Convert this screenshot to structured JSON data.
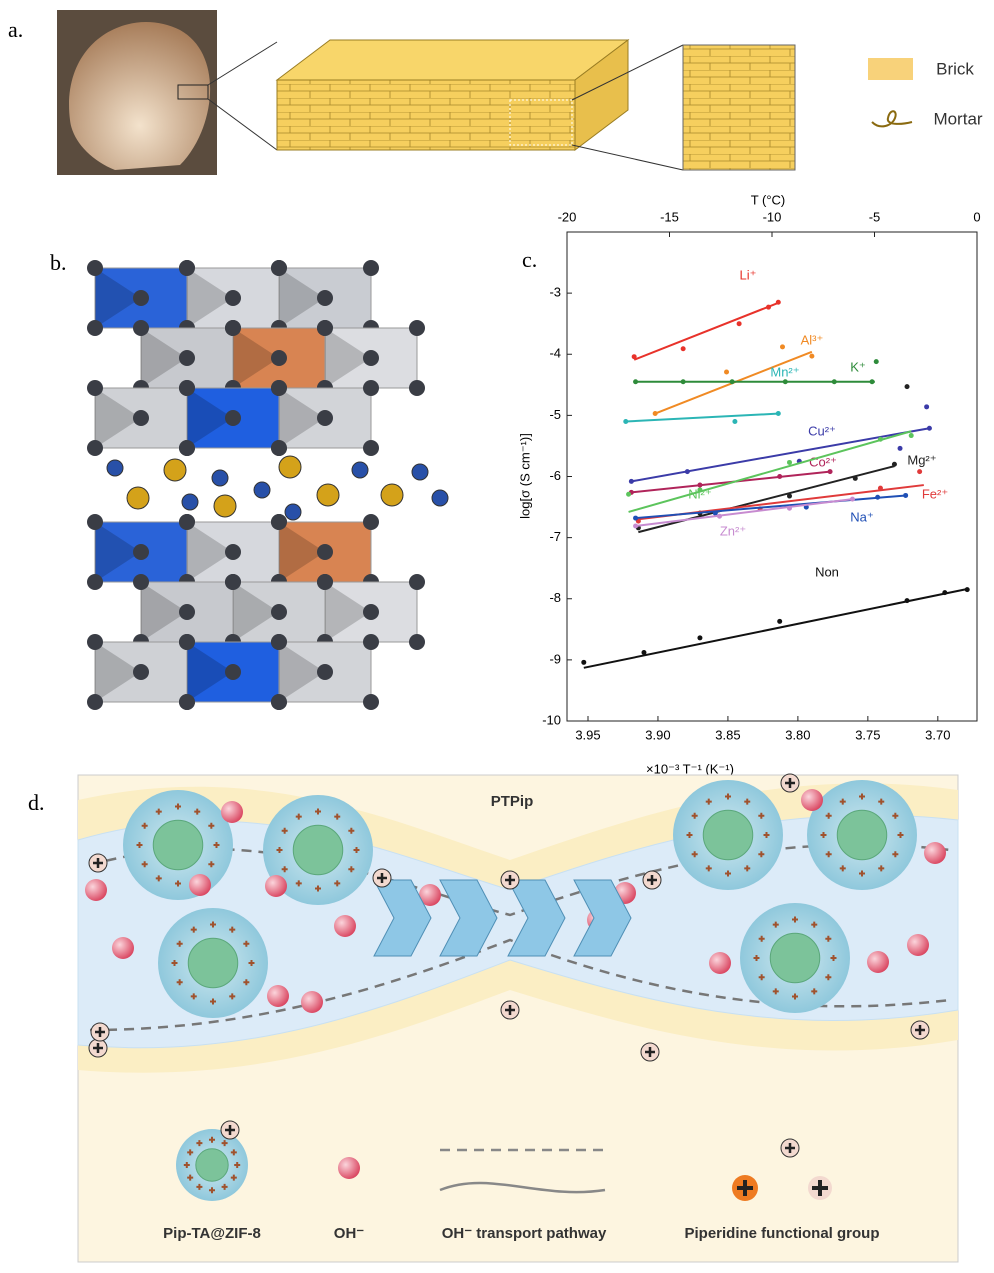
{
  "panel_labels": {
    "a": "a.",
    "b": "b.",
    "c": "c.",
    "d": "d."
  },
  "panel_a": {
    "legend": {
      "brick": "Brick",
      "mortar": "Mortar"
    }
  },
  "chart_data": {
    "type": "scatter",
    "x_label": "×10⁻³ T⁻¹ (K⁻¹)",
    "y_label": "log[σ (S cm⁻¹)]",
    "x2_label": "T (°C)",
    "xlim": [
      3.965,
      3.672
    ],
    "xticks": [
      3.95,
      {
        "value": 3.9,
        "label": "3.90"
      },
      3.85,
      {
        "value": 3.8,
        "label": "3.80"
      },
      3.75,
      {
        "value": 3.7,
        "label": "3.70"
      }
    ],
    "ylim": [
      -10,
      -2
    ],
    "yticks": [
      -10,
      -9,
      -8,
      -7,
      -6,
      -5,
      -4,
      -3
    ],
    "x2lim": [
      -20,
      0
    ],
    "x2ticks": [
      -20,
      -15,
      -10,
      -5,
      0
    ],
    "series": [
      {
        "name": "Li⁺",
        "color": "#e8322a",
        "x": [
          3.917,
          3.882,
          3.842,
          3.821,
          3.814
        ],
        "values": [
          -4.04,
          -3.91,
          -3.5,
          -3.23,
          -3.15
        ],
        "fit_x": [
          3.917,
          3.813
        ],
        "fit_values": [
          -4.09,
          -3.15
        ]
      },
      {
        "name": "Al³⁺",
        "color": "#f08a24",
        "x": [
          3.902,
          3.851,
          3.811,
          3.79
        ],
        "values": [
          -4.97,
          -4.29,
          -3.88,
          -4.03
        ],
        "fit_x": [
          3.902,
          3.79
        ],
        "fit_values": [
          -4.97,
          -3.96
        ]
      },
      {
        "name": "K⁺",
        "color": "#2e8b3a",
        "x": [
          3.916,
          3.882,
          3.847,
          3.809,
          3.774,
          3.747,
          3.744
        ],
        "values": [
          -4.45,
          -4.45,
          -4.45,
          -4.45,
          -4.45,
          -4.45,
          -4.12
        ],
        "fit_x": [
          3.916,
          3.745
        ],
        "fit_values": [
          -4.45,
          -4.45
        ]
      },
      {
        "name": "Mn²⁺",
        "color": "#2bb5b5",
        "x": [
          3.923,
          3.845,
          3.814
        ],
        "values": [
          -5.1,
          -5.1,
          -4.97
        ],
        "fit_x": [
          3.923,
          3.813
        ],
        "fit_values": [
          -5.1,
          -4.97
        ]
      },
      {
        "name": "Cu²⁺",
        "color": "#3b3ba8",
        "x": [
          3.919,
          3.879,
          3.799,
          3.727,
          3.706,
          3.708
        ],
        "values": [
          -6.08,
          -5.92,
          -5.75,
          -5.54,
          -5.21,
          -4.86
        ],
        "fit_x": [
          3.919,
          3.706
        ],
        "fit_values": [
          -6.08,
          -5.21
        ]
      },
      {
        "name": "Co²⁺",
        "color": "#b0245a",
        "x": [
          3.919,
          3.87,
          3.813,
          3.777
        ],
        "values": [
          -6.26,
          -6.14,
          -6.0,
          -5.92
        ],
        "fit_x": [
          3.919,
          3.777
        ],
        "fit_values": [
          -6.26,
          -5.92
        ]
      },
      {
        "name": "Ni²⁺",
        "color": "#5cc45c",
        "x": [
          3.921,
          3.87,
          3.806,
          3.741,
          3.719
        ],
        "values": [
          -6.29,
          -6.22,
          -5.77,
          -5.39,
          -5.33
        ],
        "fit_x": [
          3.921,
          3.719
        ],
        "fit_values": [
          -6.58,
          -5.26
        ]
      },
      {
        "name": "Mg²⁺",
        "color": "#222222",
        "x": [
          3.914,
          3.87,
          3.806,
          3.759,
          3.731,
          3.722
        ],
        "values": [
          -6.84,
          -6.6,
          -6.32,
          -6.03,
          -5.8,
          -4.53
        ],
        "fit_x": [
          3.914,
          3.731
        ],
        "fit_values": [
          -6.91,
          -5.83
        ]
      },
      {
        "name": "Fe²⁺",
        "color": "#e03a3a",
        "x": [
          3.914,
          3.827,
          3.741,
          3.713
        ],
        "values": [
          -6.73,
          -6.53,
          -6.19,
          -5.92
        ],
        "fit_x": [
          3.914,
          3.71
        ],
        "fit_values": [
          -6.7,
          -6.14
        ]
      },
      {
        "name": "Na⁺",
        "color": "#1f4fb5",
        "x": [
          3.916,
          3.859,
          3.794,
          3.743,
          3.723
        ],
        "values": [
          -6.68,
          -6.6,
          -6.5,
          -6.34,
          -6.31
        ],
        "fit_x": [
          3.916,
          3.723
        ],
        "fit_values": [
          -6.68,
          -6.31
        ]
      },
      {
        "name": "Zn²⁺",
        "color": "#c78bd0",
        "x": [
          3.916,
          3.856,
          3.806,
          3.761
        ],
        "values": [
          -6.81,
          -6.65,
          -6.52,
          -6.37
        ],
        "fit_x": [
          3.916,
          3.761
        ],
        "fit_values": [
          -6.81,
          -6.37
        ]
      },
      {
        "name": "Non",
        "color": "#111111",
        "x": [
          3.953,
          3.91,
          3.87,
          3.813,
          3.722,
          3.695,
          3.679
        ],
        "values": [
          -9.04,
          -8.88,
          -8.64,
          -8.37,
          -8.03,
          -7.9,
          -7.85
        ],
        "fit_x": [
          3.953,
          3.679
        ],
        "fit_values": [
          -9.13,
          -7.84
        ]
      }
    ]
  },
  "panel_d": {
    "title": "PTPip",
    "legend": [
      "Pip-TA@ZIF-8",
      "OH⁻",
      "OH⁻ transport pathway",
      "Piperidine functional group"
    ]
  }
}
